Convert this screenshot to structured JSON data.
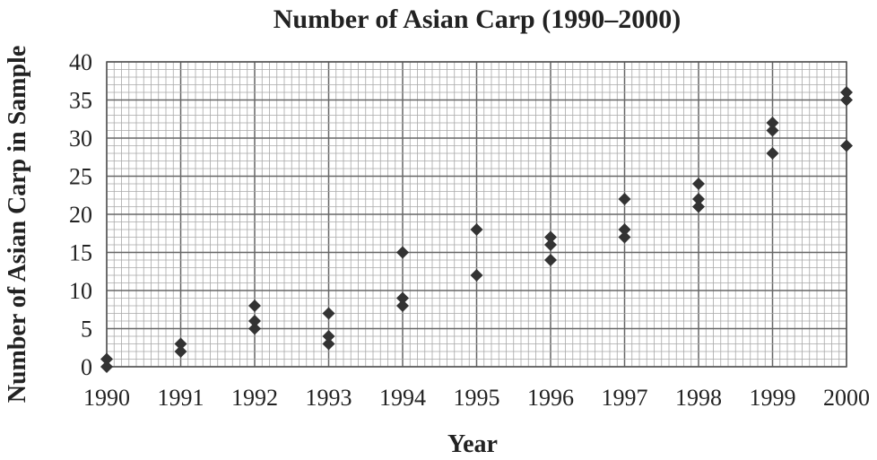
{
  "chart_data": {
    "type": "scatter",
    "title": "Number of Asian Carp (1990–2000)",
    "xlabel": "Year",
    "ylabel": "Number of Asian Carp in Sample",
    "xlim": [
      1990,
      2000
    ],
    "ylim": [
      0,
      40
    ],
    "x_ticks": [
      "1990",
      "1991",
      "1992",
      "1993",
      "1994",
      "1995",
      "1996",
      "1997",
      "1998",
      "1999",
      "2000"
    ],
    "y_ticks": [
      "0",
      "5",
      "10",
      "15",
      "20",
      "25",
      "30",
      "35",
      "40"
    ],
    "grid": true,
    "marker": "diamond",
    "color": "#333333",
    "series": [
      {
        "points": [
          {
            "x": 1990,
            "y": 0
          },
          {
            "x": 1990,
            "y": 1
          },
          {
            "x": 1991,
            "y": 2
          },
          {
            "x": 1991,
            "y": 3
          },
          {
            "x": 1992,
            "y": 5
          },
          {
            "x": 1992,
            "y": 6
          },
          {
            "x": 1992,
            "y": 8
          },
          {
            "x": 1993,
            "y": 3
          },
          {
            "x": 1993,
            "y": 4
          },
          {
            "x": 1993,
            "y": 7
          },
          {
            "x": 1994,
            "y": 8
          },
          {
            "x": 1994,
            "y": 9
          },
          {
            "x": 1994,
            "y": 15
          },
          {
            "x": 1995,
            "y": 12
          },
          {
            "x": 1995,
            "y": 18
          },
          {
            "x": 1996,
            "y": 14
          },
          {
            "x": 1996,
            "y": 16
          },
          {
            "x": 1996,
            "y": 17
          },
          {
            "x": 1997,
            "y": 17
          },
          {
            "x": 1997,
            "y": 18
          },
          {
            "x": 1997,
            "y": 22
          },
          {
            "x": 1998,
            "y": 21
          },
          {
            "x": 1998,
            "y": 22
          },
          {
            "x": 1998,
            "y": 24
          },
          {
            "x": 1999,
            "y": 28
          },
          {
            "x": 1999,
            "y": 31
          },
          {
            "x": 1999,
            "y": 32
          },
          {
            "x": 2000,
            "y": 29
          },
          {
            "x": 2000,
            "y": 35
          },
          {
            "x": 2000,
            "y": 36
          }
        ]
      }
    ]
  }
}
